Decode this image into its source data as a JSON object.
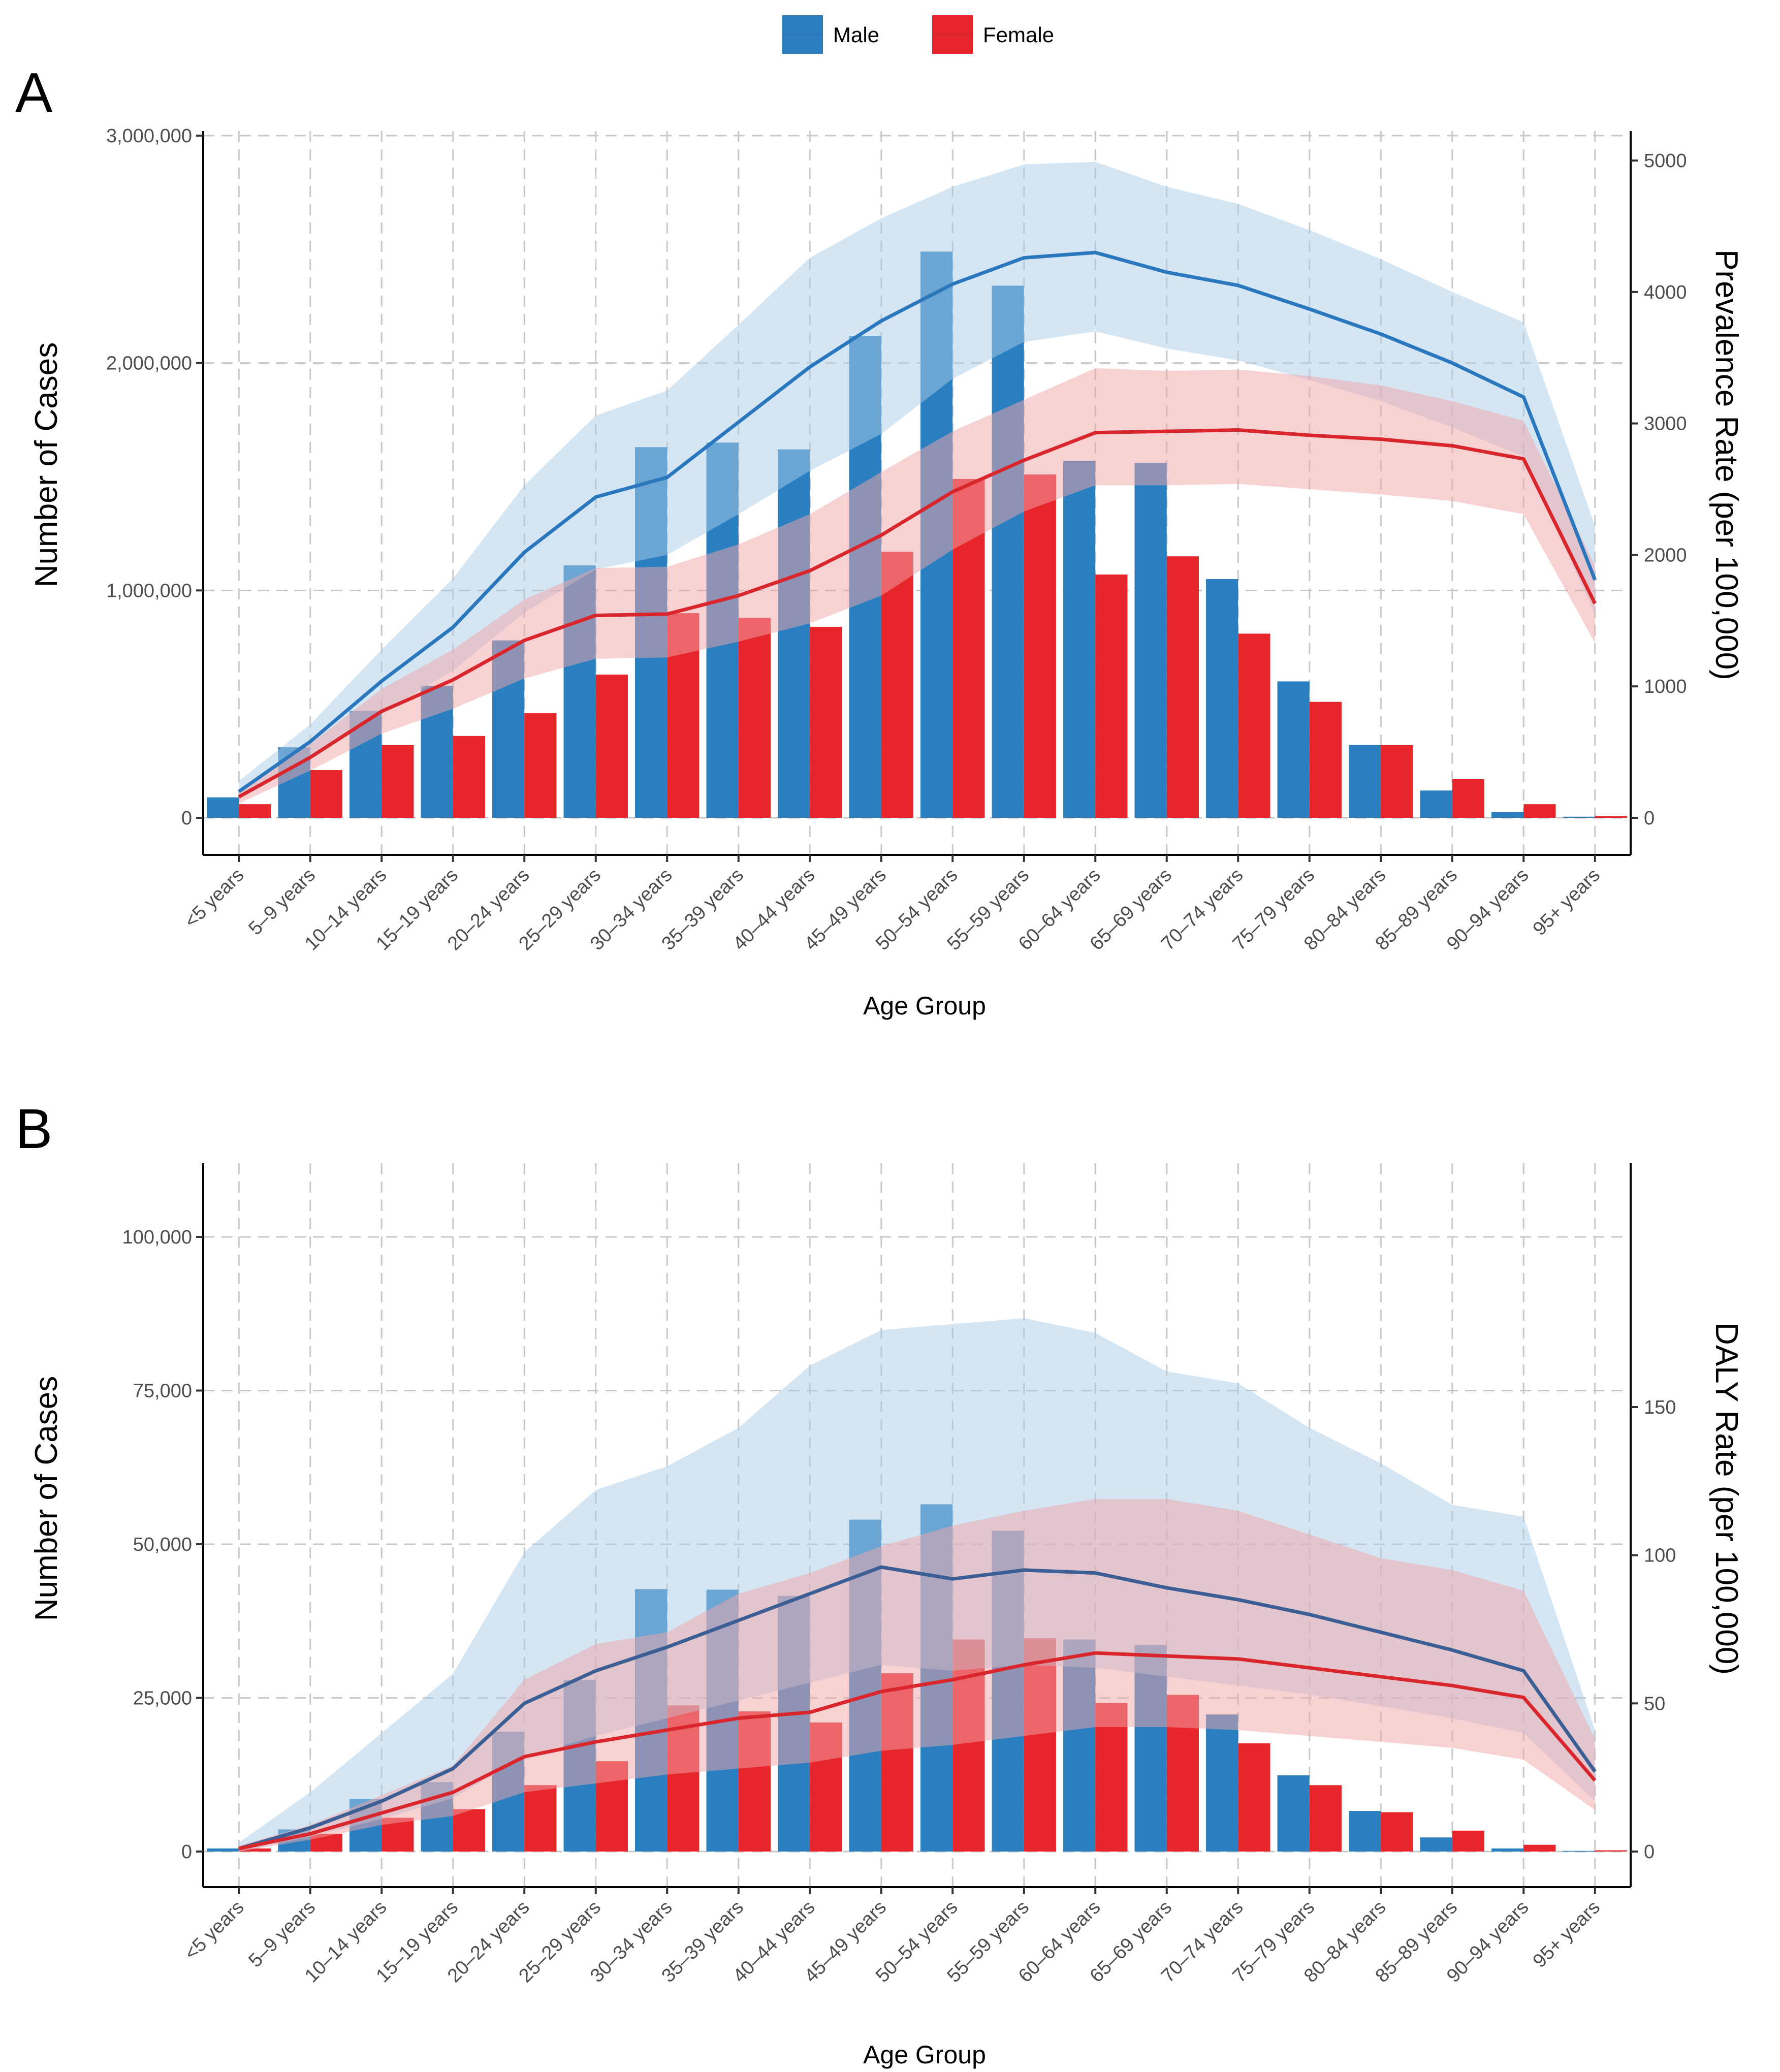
{
  "legend": {
    "items": [
      {
        "label": "Male",
        "color": "#2a7fc1"
      },
      {
        "label": "Female",
        "color": "#e6262b"
      }
    ]
  },
  "colors": {
    "male": "#2a7fc1",
    "female": "#e6262b",
    "male_band": "#a9cbe8",
    "female_band": "#f2a5a8",
    "male_line_a": "#2a77bd",
    "male_line_b": "#3b5f95",
    "female_line": "#d9262d",
    "grid": "#c8c8c8"
  },
  "chart_data": [
    {
      "panel": "A",
      "type": "bar",
      "xlabel": "Age Group",
      "ylabel": "Number of Cases",
      "y2label": "Prevalence Rate (per 100,000)",
      "ylim": [
        0,
        3000000
      ],
      "y2lim": [
        0,
        5000
      ],
      "yticks": [
        0,
        1000000,
        2000000,
        3000000
      ],
      "ytick_labels": [
        "0",
        "1,000,000",
        "2,000,000",
        "3,000,000"
      ],
      "y2ticks": [
        0,
        1000,
        2000,
        3000,
        4000,
        5000
      ],
      "y2tick_labels": [
        "0",
        "1000",
        "2000",
        "3000",
        "4000",
        "5000"
      ],
      "grid": true,
      "categories": [
        "<5 years",
        "5–9 years",
        "10–14 years",
        "15–19 years",
        "20–24 years",
        "25–29 years",
        "30–34 years",
        "35–39 years",
        "40–44 years",
        "45–49 years",
        "50–54 years",
        "55–59 years",
        "60–64 years",
        "65–69 years",
        "70–74 years",
        "75–79 years",
        "80–84 years",
        "85–89 years",
        "90–94 years",
        "95+ years"
      ],
      "bars": [
        {
          "name": "Male",
          "values": [
            90000,
            310000,
            470000,
            580000,
            780000,
            1110000,
            1630000,
            1650000,
            1620000,
            2120000,
            2490000,
            2340000,
            1570000,
            1560000,
            1050000,
            600000,
            320000,
            120000,
            25000,
            5000
          ]
        },
        {
          "name": "Female",
          "values": [
            60000,
            210000,
            320000,
            360000,
            460000,
            630000,
            900000,
            880000,
            840000,
            1170000,
            1490000,
            1510000,
            1070000,
            1150000,
            810000,
            510000,
            320000,
            170000,
            60000,
            8000
          ]
        }
      ],
      "rate_lines": [
        {
          "name": "Male",
          "values": [
            200,
            580,
            1040,
            1450,
            2020,
            2440,
            2590,
            3010,
            3430,
            3780,
            4060,
            4260,
            4300,
            4150,
            4050,
            3870,
            3680,
            3460,
            3200,
            1810
          ],
          "lower": [
            140,
            450,
            800,
            1120,
            1560,
            1890,
            2000,
            2310,
            2640,
            2920,
            3340,
            3620,
            3700,
            3570,
            3480,
            3330,
            3170,
            2970,
            2750,
            1550
          ],
          "upper": [
            280,
            710,
            1280,
            1820,
            2530,
            3060,
            3250,
            3750,
            4260,
            4560,
            4800,
            4970,
            4990,
            4800,
            4670,
            4470,
            4250,
            4000,
            3770,
            2220
          ]
        },
        {
          "name": "Female",
          "values": [
            160,
            460,
            810,
            1050,
            1350,
            1540,
            1550,
            1690,
            1880,
            2150,
            2480,
            2720,
            2930,
            2940,
            2950,
            2910,
            2880,
            2830,
            2730,
            1630
          ],
          "lower": [
            110,
            360,
            640,
            830,
            1060,
            1210,
            1220,
            1340,
            1480,
            1690,
            2040,
            2330,
            2530,
            2530,
            2540,
            2500,
            2460,
            2410,
            2310,
            1330
          ],
          "upper": [
            200,
            560,
            980,
            1280,
            1660,
            1900,
            1910,
            2080,
            2310,
            2630,
            2940,
            3180,
            3420,
            3400,
            3410,
            3360,
            3290,
            3170,
            3020,
            1920
          ]
        }
      ]
    },
    {
      "panel": "B",
      "type": "bar",
      "xlabel": "Age Group",
      "ylabel": "Number of Cases",
      "y2label": "DALY Rate (per 100,000)",
      "ylim": [
        -2500,
        112000
      ],
      "y2lim": [
        0,
        187.9
      ],
      "yticks": [
        0,
        25000,
        50000,
        75000,
        100000
      ],
      "ytick_labels": [
        "0",
        "25,000",
        "50,000",
        "75,000",
        "100,000"
      ],
      "y2ticks": [
        0,
        50,
        100,
        150
      ],
      "y2tick_labels": [
        "0",
        "50",
        "100",
        "150"
      ],
      "grid": true,
      "categories": [
        "<5 years",
        "5–9 years",
        "10–14 years",
        "15–19 years",
        "20–24 years",
        "25–29 years",
        "30–34 years",
        "35–39 years",
        "40–44 years",
        "45–49 years",
        "50–54 years",
        "55–59 years",
        "60–64 years",
        "65–69 years",
        "70–74 years",
        "75–79 years",
        "80–84 years",
        "85–89 years",
        "90–94 years",
        "95+ years"
      ],
      "bars": [
        {
          "name": "Male",
          "values": [
            500,
            3600,
            8600,
            11300,
            19500,
            27900,
            42700,
            42600,
            41600,
            54000,
            56500,
            52200,
            34500,
            33600,
            22300,
            12400,
            6600,
            2300,
            500,
            100
          ]
        },
        {
          "name": "Female",
          "values": [
            500,
            2900,
            5500,
            6900,
            10800,
            14700,
            23800,
            22800,
            21000,
            29000,
            34500,
            34700,
            24200,
            25500,
            17600,
            10800,
            6400,
            3400,
            1100,
            200
          ]
        }
      ],
      "rate_lines": [
        {
          "name": "Male",
          "values": [
            1,
            8,
            17,
            28,
            50,
            61,
            69,
            78,
            87,
            96,
            92,
            95,
            94,
            89,
            85,
            80,
            74,
            68,
            61,
            27
          ],
          "lower": [
            0,
            5,
            11,
            18,
            32,
            39,
            45,
            51,
            57,
            63,
            61,
            63,
            62,
            59,
            56,
            53,
            49,
            45,
            40,
            17
          ],
          "upper": [
            3,
            20,
            40,
            60,
            101,
            122,
            130,
            143,
            164,
            176,
            178,
            180,
            175,
            162,
            158,
            143,
            131,
            117,
            113,
            41
          ]
        },
        {
          "name": "Female",
          "values": [
            1,
            6,
            13,
            20,
            32,
            37,
            41,
            45,
            47,
            54,
            58,
            63,
            67,
            66,
            65,
            62,
            59,
            56,
            52,
            24
          ],
          "lower": [
            0,
            4,
            9,
            12,
            20,
            23,
            26,
            28,
            30,
            34,
            36,
            39,
            42,
            42,
            41,
            39,
            37,
            35,
            31,
            14
          ],
          "upper": [
            2,
            9,
            19,
            29,
            58,
            70,
            74,
            87,
            94,
            103,
            110,
            115,
            119,
            119,
            115,
            107,
            99,
            95,
            88,
            38
          ]
        }
      ]
    }
  ]
}
